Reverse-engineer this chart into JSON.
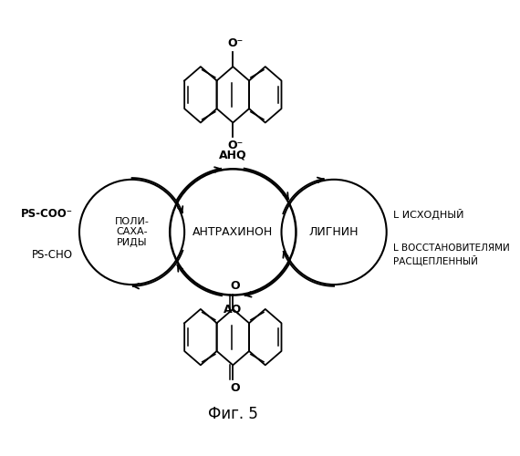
{
  "title": "Фиг. 5",
  "center_text": "АНТРАХИНОН",
  "left_circle_text": "ПОЛИ-\nСАХА-\nРИДЫ",
  "right_circle_text": "ЛИГНИН",
  "top_label": "AHQ",
  "bottom_label": "AQ",
  "left_top_label": "PS-COO⁻",
  "left_bottom_label": "PS-CHO",
  "right_top_label": "L ИСХОДНЫЙ",
  "right_bottom_line1": "L ВОССТАНОВИТЕЛЯМИ",
  "right_bottom_line2": "РАСЩЕПЛЕННЫЙ",
  "background_color": "#ffffff",
  "line_color": "#000000"
}
